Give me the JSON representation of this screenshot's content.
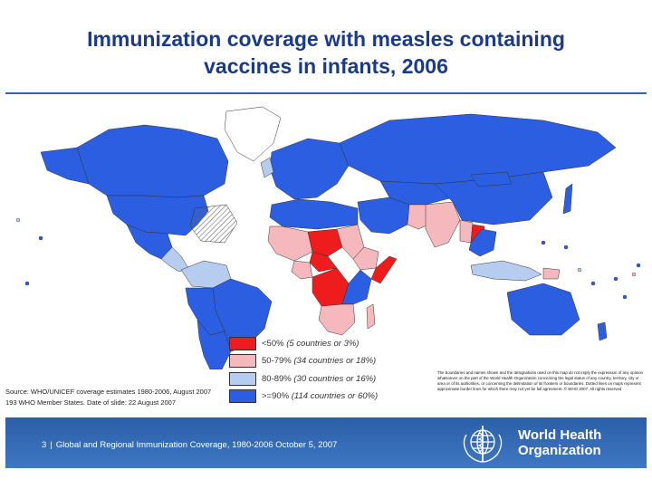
{
  "slide": {
    "title_line1": "Immunization coverage with measles containing",
    "title_line2": "vaccines in infants, 2006"
  },
  "map": {
    "colors": {
      "lt50": "#ee1c1c",
      "p50_79": "#f5b8bc",
      "p80_89": "#b6cdf0",
      "ge90": "#2b5ee0",
      "nodata": "#ffffff",
      "ocean": "#ffffff",
      "border": "#333333"
    }
  },
  "legend": {
    "items": [
      {
        "label": "<50%",
        "note": "(5 countries or 3%)",
        "color": "#ee1c1c"
      },
      {
        "label": "50-79%",
        "note": "(34 countries or 18%)",
        "color": "#f5b8bc"
      },
      {
        "label": "80-89%",
        "note": "(30 countries or 16%)",
        "color": "#b6cdf0"
      },
      {
        "label": ">=90%",
        "note": "(114 countries or 60%)",
        "color": "#2b5ee0"
      }
    ]
  },
  "source": {
    "line1": "Source: WHO/UNICEF coverage estimates 1980-2006, August 2007",
    "line2": "193 WHO Member States. Date of slide: 22 August 2007"
  },
  "disclaimer": {
    "text": "The boundaries and names shown and the designations used on this map do not imply the expression of any opinion whatsoever on the part of the World Health Organization concerning the legal status of any country, territory, city or area or of its authorities, or concerning the delimitation of its frontiers or boundaries. Dotted lines on maps represent approximate border lines for which there may not yet be full agreement. © WHO 2007. All rights reserved"
  },
  "footer": {
    "page_number": "3",
    "separator": "|",
    "text": "Global and Regional Immunization Coverage, 1980-2006",
    "date": "October 5, 2007",
    "org_line1": "World Health",
    "org_line2": "Organization"
  }
}
